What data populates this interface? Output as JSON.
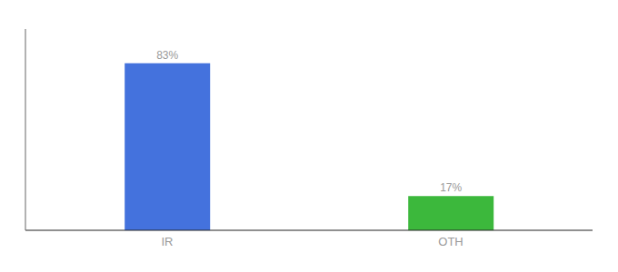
{
  "chart_data": {
    "type": "bar",
    "categories": [
      "IR",
      "OTH"
    ],
    "values": [
      83,
      17
    ],
    "value_labels": [
      "83%",
      "17%"
    ],
    "colors": [
      "#4472DD",
      "#3CB83C"
    ],
    "data_labels": true,
    "ylim": [
      0,
      100
    ],
    "tick_labels": "x",
    "grid": false
  }
}
